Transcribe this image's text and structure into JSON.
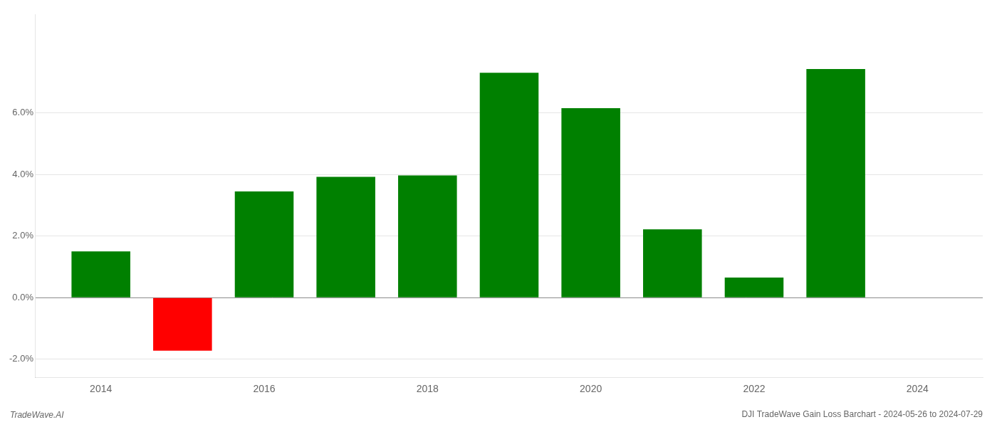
{
  "chart_data": {
    "type": "bar",
    "title": "DJI TradeWave Gain Loss Barchart - 2024-05-26 to 2024-07-29",
    "annotations": [
      "TradeWave.AI"
    ],
    "x": [
      2014,
      2015,
      2016,
      2017,
      2018,
      2019,
      2020,
      2021,
      2022,
      2023
    ],
    "values": [
      1.5,
      -1.72,
      3.45,
      3.92,
      3.97,
      7.3,
      6.15,
      2.22,
      0.65,
      7.42
    ],
    "colors": [
      "#008000",
      "#ff0000",
      "#008000",
      "#008000",
      "#008000",
      "#008000",
      "#008000",
      "#008000",
      "#008000",
      "#008000"
    ],
    "xlim": [
      2013.2,
      2024.8
    ],
    "xticks": [
      2014,
      2016,
      2018,
      2020,
      2022,
      2024
    ],
    "ylim": [
      -2.6,
      9.2
    ],
    "yticks": [
      {
        "value": -2.0,
        "label": "-2.0%"
      },
      {
        "value": 0.0,
        "label": "0.0%"
      },
      {
        "value": 2.0,
        "label": "2.0%"
      },
      {
        "value": 4.0,
        "label": "4.0%"
      },
      {
        "value": 6.0,
        "label": "6.0%"
      }
    ],
    "grid": "y"
  }
}
